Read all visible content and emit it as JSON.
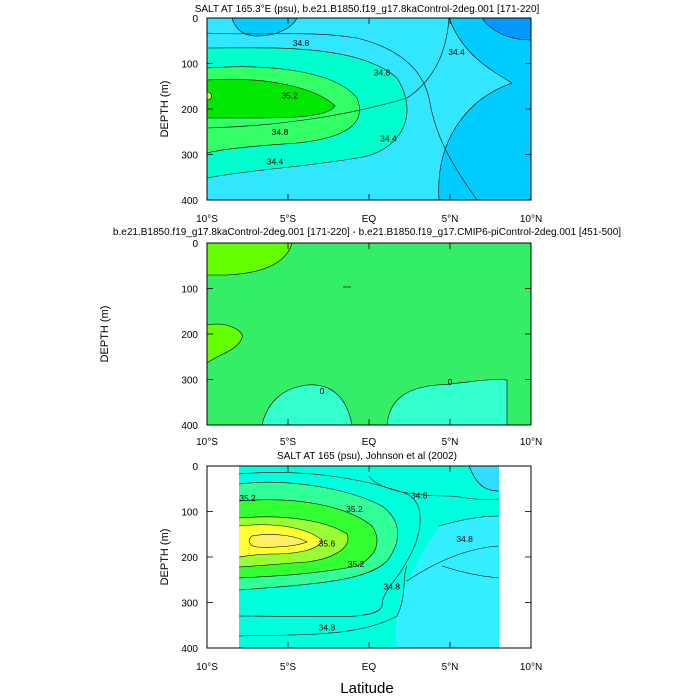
{
  "chart_data": [
    {
      "type": "contour",
      "title": "SALT AT 165.3°E (psu), b.e21.B1850.f19_g17.8kaControl-2deg.001 [171-220]",
      "ylabel": "DEPTH (m)",
      "xlabel": "",
      "x_ticks": [
        "10°S",
        "5°S",
        "EQ",
        "5°N",
        "10°N"
      ],
      "y_ticks": [
        "0",
        "100",
        "200",
        "300",
        "400"
      ],
      "xlim": [
        -10,
        10
      ],
      "ylim": [
        400,
        0
      ],
      "contour_labels": [
        {
          "text": "34.8",
          "lat": -4.2,
          "depth": 55
        },
        {
          "text": "34.8",
          "lat": 0.8,
          "depth": 120
        },
        {
          "text": "34.4",
          "lat": 5.4,
          "depth": 75
        },
        {
          "text": "35.2",
          "lat": -4.9,
          "depth": 170
        },
        {
          "text": "34.8",
          "lat": -5.5,
          "depth": 250
        },
        {
          "text": "34.4",
          "lat": 1.2,
          "depth": 265
        },
        {
          "text": "34.4",
          "lat": -5.8,
          "depth": 315
        }
      ]
    },
    {
      "type": "contour",
      "title": "b.e21.B1850.f19_g17.8kaControl-2deg.001 [171-220] - b.e21.B1850.f19_g17.CMIP6-piControl-2deg.001 [451-500]",
      "ylabel": "DEPTH (m)",
      "xlabel": "",
      "x_ticks": [
        "10°S",
        "5°S",
        "EQ",
        "5°N",
        "10°N"
      ],
      "y_ticks": [
        "0",
        "100",
        "200",
        "300",
        "400"
      ],
      "xlim": [
        -10,
        10
      ],
      "ylim": [
        400,
        0
      ],
      "contour_labels": [
        {
          "text": "0",
          "lat": -2.9,
          "depth": 325
        },
        {
          "text": "0",
          "lat": 5.0,
          "depth": 305
        }
      ]
    },
    {
      "type": "contour",
      "title": "SALT AT 165 (psu), Johnson et al (2002)",
      "ylabel": "DEPTH (m)",
      "xlabel": "Latitude",
      "x_ticks": [
        "10°S",
        "5°S",
        "EQ",
        "5°N",
        "10°N"
      ],
      "y_ticks": [
        "0",
        "100",
        "200",
        "300",
        "400"
      ],
      "xlim": [
        -10,
        10
      ],
      "ylim": [
        400,
        0
      ],
      "data_lat_range": [
        -8,
        8
      ],
      "contour_labels": [
        {
          "text": "35.2",
          "lat": -7.5,
          "depth": 70
        },
        {
          "text": "35.2",
          "lat": -0.9,
          "depth": 95
        },
        {
          "text": "34.8",
          "lat": 3.1,
          "depth": 65
        },
        {
          "text": "34.8",
          "lat": 5.9,
          "depth": 160
        },
        {
          "text": "35.6",
          "lat": -2.6,
          "depth": 170
        },
        {
          "text": "35.2",
          "lat": -0.8,
          "depth": 215
        },
        {
          "text": "34.8",
          "lat": 1.4,
          "depth": 265
        },
        {
          "text": "34.8",
          "lat": -2.6,
          "depth": 355
        }
      ]
    }
  ]
}
